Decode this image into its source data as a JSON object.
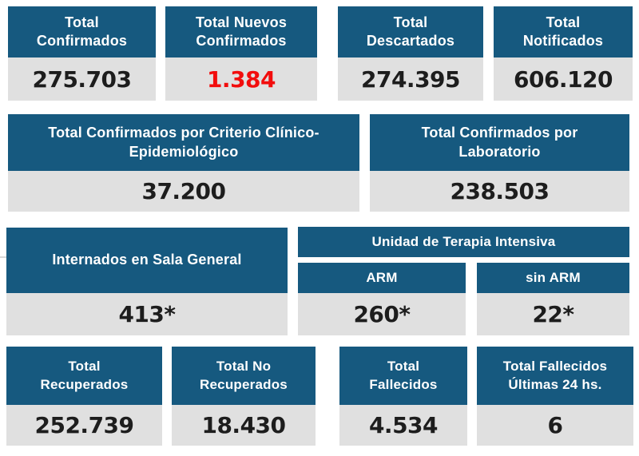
{
  "colors": {
    "header_bg": "#16597f",
    "header_text": "#ffffff",
    "body_bg": "#e0e0e0",
    "value_text": "#1d1d1d",
    "new_confirmed_value": "#f20d0d",
    "page_bg": "#ffffff"
  },
  "summary_row": {
    "cards": [
      {
        "label": "Total\nConfirmados",
        "value": "275.703"
      },
      {
        "label": "Total Nuevos\nConfirmados",
        "value": "1.384"
      },
      {
        "label": "Total\nDescartados",
        "value": "274.395"
      },
      {
        "label": "Total\nNotificados",
        "value": "606.120"
      }
    ]
  },
  "criteria_row": {
    "cards": [
      {
        "label": "Total Confirmados por Criterio Clínico-\nEpidemiológico",
        "value": "37.200"
      },
      {
        "label": "Total Confirmados por\nLaboratorio",
        "value": "238.503"
      }
    ]
  },
  "hospital_row": {
    "general_ward": {
      "label": "Internados en Sala General",
      "value": "413*"
    },
    "icu": {
      "label": "Unidad de Terapia Intensiva",
      "columns": [
        {
          "label": "ARM",
          "value": "260*"
        },
        {
          "label": "sin ARM",
          "value": "22*"
        }
      ]
    }
  },
  "outcome_row": {
    "cards": [
      {
        "label": "Total\nRecuperados",
        "value": "252.739"
      },
      {
        "label": "Total No\nRecuperados",
        "value": "18.430"
      },
      {
        "label": "Total\nFallecidos",
        "value": "4.534"
      },
      {
        "label": "Total Fallecidos\nÚltimas 24 hs.",
        "value": "6"
      }
    ]
  }
}
